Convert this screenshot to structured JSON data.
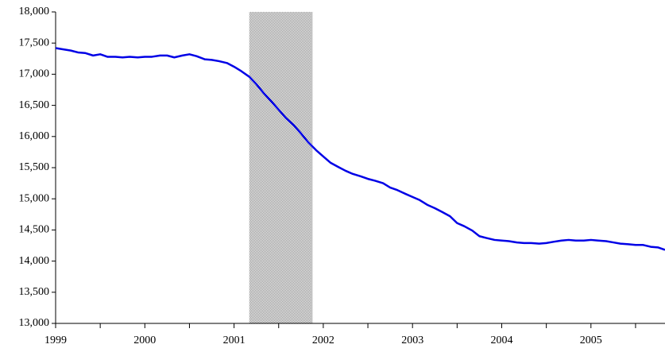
{
  "chart_data": {
    "type": "line",
    "x": [
      1999,
      1999.08,
      1999.17,
      1999.25,
      1999.33,
      1999.42,
      1999.5,
      1999.58,
      1999.67,
      1999.75,
      1999.83,
      1999.92,
      2000,
      2000.08,
      2000.17,
      2000.25,
      2000.33,
      2000.42,
      2000.5,
      2000.58,
      2000.67,
      2000.75,
      2000.83,
      2000.92,
      2001,
      2001.08,
      2001.17,
      2001.25,
      2001.33,
      2001.42,
      2001.5,
      2001.58,
      2001.67,
      2001.75,
      2001.83,
      2001.92,
      2002,
      2002.08,
      2002.17,
      2002.25,
      2002.33,
      2002.42,
      2002.5,
      2002.58,
      2002.67,
      2002.75,
      2002.83,
      2002.92,
      2003,
      2003.08,
      2003.17,
      2003.25,
      2003.33,
      2003.42,
      2003.5,
      2003.58,
      2003.67,
      2003.75,
      2003.83,
      2003.92,
      2004,
      2004.08,
      2004.17,
      2004.25,
      2004.33,
      2004.42,
      2004.5,
      2004.58,
      2004.67,
      2004.75,
      2004.83,
      2004.92,
      2005,
      2005.08,
      2005.17,
      2005.25,
      2005.33,
      2005.42,
      2005.5,
      2005.58,
      2005.67,
      2005.75,
      2005.83
    ],
    "series": [
      {
        "color": "#0000e6",
        "values": [
          17420,
          17400,
          17380,
          17350,
          17340,
          17300,
          17320,
          17280,
          17280,
          17270,
          17280,
          17270,
          17280,
          17280,
          17300,
          17300,
          17270,
          17300,
          17320,
          17290,
          17240,
          17230,
          17210,
          17180,
          17120,
          17050,
          16960,
          16840,
          16700,
          16560,
          16430,
          16300,
          16180,
          16050,
          15910,
          15780,
          15680,
          15580,
          15510,
          15450,
          15400,
          15360,
          15320,
          15290,
          15250,
          15180,
          15140,
          15080,
          15030,
          14980,
          14900,
          14850,
          14790,
          14720,
          14610,
          14560,
          14490,
          14400,
          14370,
          14340,
          14330,
          14320,
          14300,
          14290,
          14290,
          14280,
          14290,
          14310,
          14330,
          14340,
          14330,
          14330,
          14340,
          14330,
          14320,
          14300,
          14280,
          14270,
          14260,
          14260,
          14230,
          14220,
          14180
        ]
      }
    ],
    "shaded_range": [
      2001.17,
      2001.88
    ],
    "shade_color": "#b8b8b8",
    "xlim": [
      1999,
      2005.83
    ],
    "xticks": [
      1999,
      2000,
      2001,
      2002,
      2003,
      2004,
      2005
    ],
    "ylim": [
      13000,
      18000
    ],
    "yticks": [
      {
        "value": 13000,
        "label": "13,000"
      },
      {
        "value": 13500,
        "label": "13,500"
      },
      {
        "value": 14000,
        "label": "14,000"
      },
      {
        "value": 14500,
        "label": "14,500"
      },
      {
        "value": 15000,
        "label": "15,000"
      },
      {
        "value": 15500,
        "label": "15,500"
      },
      {
        "value": 16000,
        "label": "16,000"
      },
      {
        "value": 16500,
        "label": "16,500"
      },
      {
        "value": 17000,
        "label": "17,000"
      },
      {
        "value": 17500,
        "label": "17,500"
      },
      {
        "value": 18000,
        "label": "18,000"
      }
    ],
    "grid": false
  }
}
